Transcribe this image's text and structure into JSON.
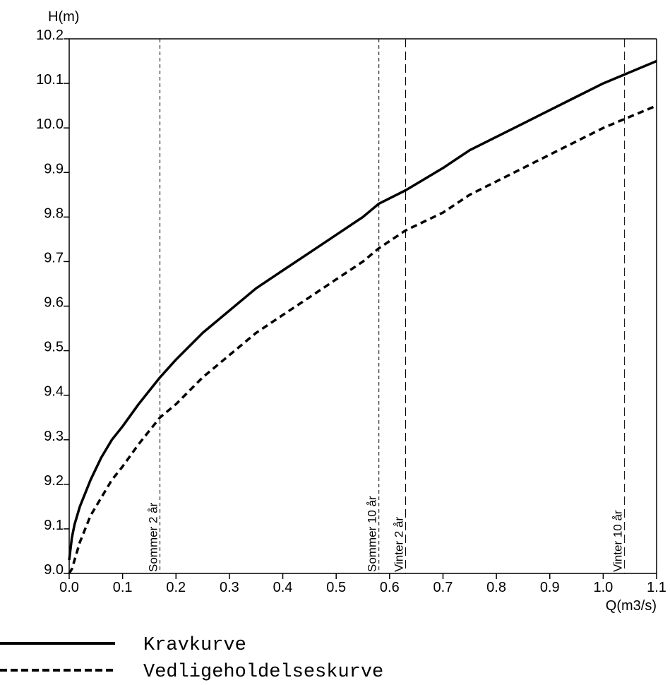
{
  "chart_data": {
    "type": "line",
    "title": "",
    "xlabel": "Q(m3/s)",
    "ylabel": "H(m)",
    "xlim": [
      0.0,
      1.1
    ],
    "ylim": [
      9.0,
      10.2
    ],
    "xticks": [
      "0.0",
      "0.1",
      "0.2",
      "0.3",
      "0.4",
      "0.5",
      "0.6",
      "0.7",
      "0.8",
      "0.9",
      "1.0",
      "1.1"
    ],
    "yticks": [
      "9.0",
      "9.1",
      "9.2",
      "9.3",
      "9.4",
      "9.5",
      "9.6",
      "9.7",
      "9.8",
      "9.9",
      "10.0",
      "10.1",
      "10.2"
    ],
    "grid": false,
    "legend_position": "bottom-left",
    "series": [
      {
        "name": "Kravkurve",
        "style": "solid",
        "x": [
          0.0,
          0.005,
          0.01,
          0.02,
          0.04,
          0.06,
          0.08,
          0.1,
          0.13,
          0.17,
          0.2,
          0.25,
          0.3,
          0.35,
          0.4,
          0.45,
          0.5,
          0.55,
          0.58,
          0.63,
          0.7,
          0.75,
          0.8,
          0.85,
          0.9,
          0.95,
          1.0,
          1.04,
          1.1
        ],
        "y": [
          9.03,
          9.08,
          9.11,
          9.15,
          9.21,
          9.26,
          9.3,
          9.33,
          9.38,
          9.44,
          9.48,
          9.54,
          9.59,
          9.64,
          9.68,
          9.72,
          9.76,
          9.8,
          9.83,
          9.86,
          9.91,
          9.95,
          9.98,
          10.01,
          10.04,
          10.07,
          10.1,
          10.12,
          10.15
        ]
      },
      {
        "name": "Vedligeholdelseskurve",
        "style": "dashed",
        "x": [
          0.0,
          0.005,
          0.01,
          0.02,
          0.04,
          0.06,
          0.08,
          0.1,
          0.13,
          0.17,
          0.2,
          0.25,
          0.3,
          0.35,
          0.4,
          0.45,
          0.5,
          0.55,
          0.58,
          0.63,
          0.7,
          0.75,
          0.8,
          0.85,
          0.9,
          0.95,
          1.0,
          1.04,
          1.1
        ],
        "y": [
          9.0,
          9.01,
          9.03,
          9.07,
          9.13,
          9.17,
          9.21,
          9.24,
          9.29,
          9.35,
          9.38,
          9.44,
          9.49,
          9.54,
          9.58,
          9.62,
          9.66,
          9.7,
          9.73,
          9.77,
          9.81,
          9.85,
          9.88,
          9.91,
          9.94,
          9.97,
          10.0,
          10.02,
          10.05
        ]
      }
    ],
    "reference_lines": [
      {
        "x": 0.17,
        "label": "Sommer 2 år",
        "dash": "short"
      },
      {
        "x": 0.58,
        "label": "Sommer 10 år",
        "dash": "short"
      },
      {
        "x": 0.63,
        "label": "Vinter 2 år",
        "dash": "long"
      },
      {
        "x": 1.04,
        "label": "Vinter 10 år",
        "dash": "long"
      }
    ]
  },
  "colors": {
    "line": "#000000",
    "background": "#ffffff"
  }
}
